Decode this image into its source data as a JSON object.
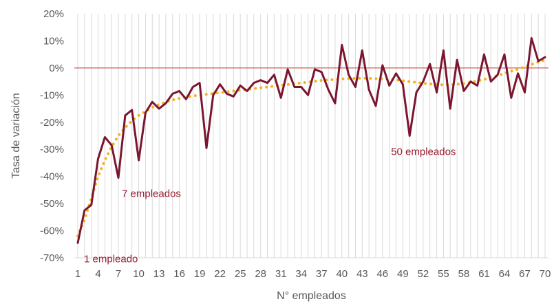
{
  "chart_data": {
    "type": "line",
    "xlabel": "N° empleados",
    "ylabel": "Tasa de variación",
    "x_tick_labels": [
      "1",
      "4",
      "7",
      "10",
      "13",
      "16",
      "19",
      "22",
      "25",
      "28",
      "31",
      "34",
      "37",
      "40",
      "43",
      "46",
      "49",
      "52",
      "55",
      "58",
      "61",
      "64",
      "67",
      "70"
    ],
    "y_tick_labels": [
      "20%",
      "10%",
      "0%",
      "-10%",
      "-20%",
      "-30%",
      "-40%",
      "-50%",
      "-60%",
      "-70%"
    ],
    "ylim": [
      -70,
      20
    ],
    "xlim": [
      1,
      70
    ],
    "grid": "vertical lines at every x value",
    "reference_line": {
      "y": 0,
      "color": "#c0392b"
    },
    "series": [
      {
        "style": "solid",
        "color": "#7b1530",
        "x": [
          1,
          2,
          3,
          4,
          5,
          6,
          7,
          8,
          9,
          10,
          11,
          12,
          13,
          14,
          15,
          16,
          17,
          18,
          19,
          20,
          21,
          22,
          23,
          24,
          25,
          26,
          27,
          28,
          29,
          30,
          31,
          32,
          33,
          34,
          35,
          36,
          37,
          38,
          39,
          40,
          41,
          42,
          43,
          44,
          45,
          46,
          47,
          48,
          49,
          50,
          51,
          52,
          53,
          54,
          55,
          56,
          57,
          58,
          59,
          60,
          61,
          62,
          63,
          64,
          65,
          66,
          67,
          68,
          69,
          70
        ],
        "values": [
          -64.5,
          -52.5,
          -50.5,
          -33.5,
          -25.5,
          -28.5,
          -40.5,
          -17.5,
          -15.5,
          -34,
          -16.5,
          -12.5,
          -15,
          -13,
          -9.5,
          -8.5,
          -11.5,
          -7,
          -5.5,
          -29.5,
          -10,
          -6,
          -9.5,
          -10.5,
          -6.5,
          -8.5,
          -5.5,
          -4.5,
          -5.5,
          -2.5,
          -11,
          -0.5,
          -7,
          -7,
          -10,
          -0.5,
          -1.5,
          -8,
          -13,
          8.5,
          -2.5,
          -7,
          6.5,
          -8,
          -14,
          1,
          -6.5,
          -2,
          -6,
          -25,
          -9,
          -5,
          1.5,
          -9,
          6.5,
          -15,
          3,
          -8.5,
          -5,
          -6.5,
          5,
          -5,
          -2.5,
          5,
          -11,
          -2,
          -9,
          11,
          2.5,
          4
        ]
      },
      {
        "style": "dotted",
        "color": "#f2b21a",
        "x": [
          1,
          2,
          3,
          4,
          5,
          6,
          7,
          8,
          9,
          10,
          11,
          12,
          13,
          14,
          15,
          16,
          17,
          18,
          19,
          20,
          21,
          22,
          23,
          24,
          25,
          26,
          27,
          28,
          29,
          30,
          31,
          32,
          33,
          34,
          35,
          36,
          37,
          38,
          39,
          40,
          41,
          42,
          43,
          44,
          45,
          46,
          47,
          48,
          49,
          50,
          51,
          52,
          53,
          54,
          55,
          56,
          57,
          58,
          59,
          60,
          61,
          62,
          63,
          64,
          65,
          66,
          67,
          68,
          69,
          70
        ],
        "values": [
          -62,
          -56,
          -48,
          -40,
          -34,
          -29,
          -25,
          -22,
          -19.5,
          -17.5,
          -16,
          -14.5,
          -13.5,
          -12.5,
          -11.8,
          -11.2,
          -10.7,
          -10.3,
          -10,
          -9.7,
          -9.4,
          -9.1,
          -8.8,
          -8.5,
          -8.2,
          -7.9,
          -7.6,
          -7.3,
          -7,
          -6.7,
          -6.4,
          -6.1,
          -5.8,
          -5.5,
          -5.2,
          -4.9,
          -4.6,
          -4.4,
          -4.2,
          -4,
          -3.9,
          -3.8,
          -3.8,
          -3.8,
          -3.9,
          -4,
          -4.2,
          -4.4,
          -4.7,
          -5,
          -5.3,
          -5.6,
          -5.9,
          -6.1,
          -6.2,
          -6.2,
          -6,
          -5.7,
          -5.3,
          -4.8,
          -4.2,
          -3.5,
          -2.8,
          -2,
          -1.2,
          -0.4,
          0.4,
          1.3,
          2.2,
          3
        ]
      }
    ],
    "annotations": [
      {
        "text": "1 empleado",
        "x": 1,
        "y": -64.5
      },
      {
        "text": "7 empleados",
        "x": 7,
        "y": -40.5
      },
      {
        "text": "50 empleados",
        "x": 50,
        "y": -25
      }
    ]
  }
}
